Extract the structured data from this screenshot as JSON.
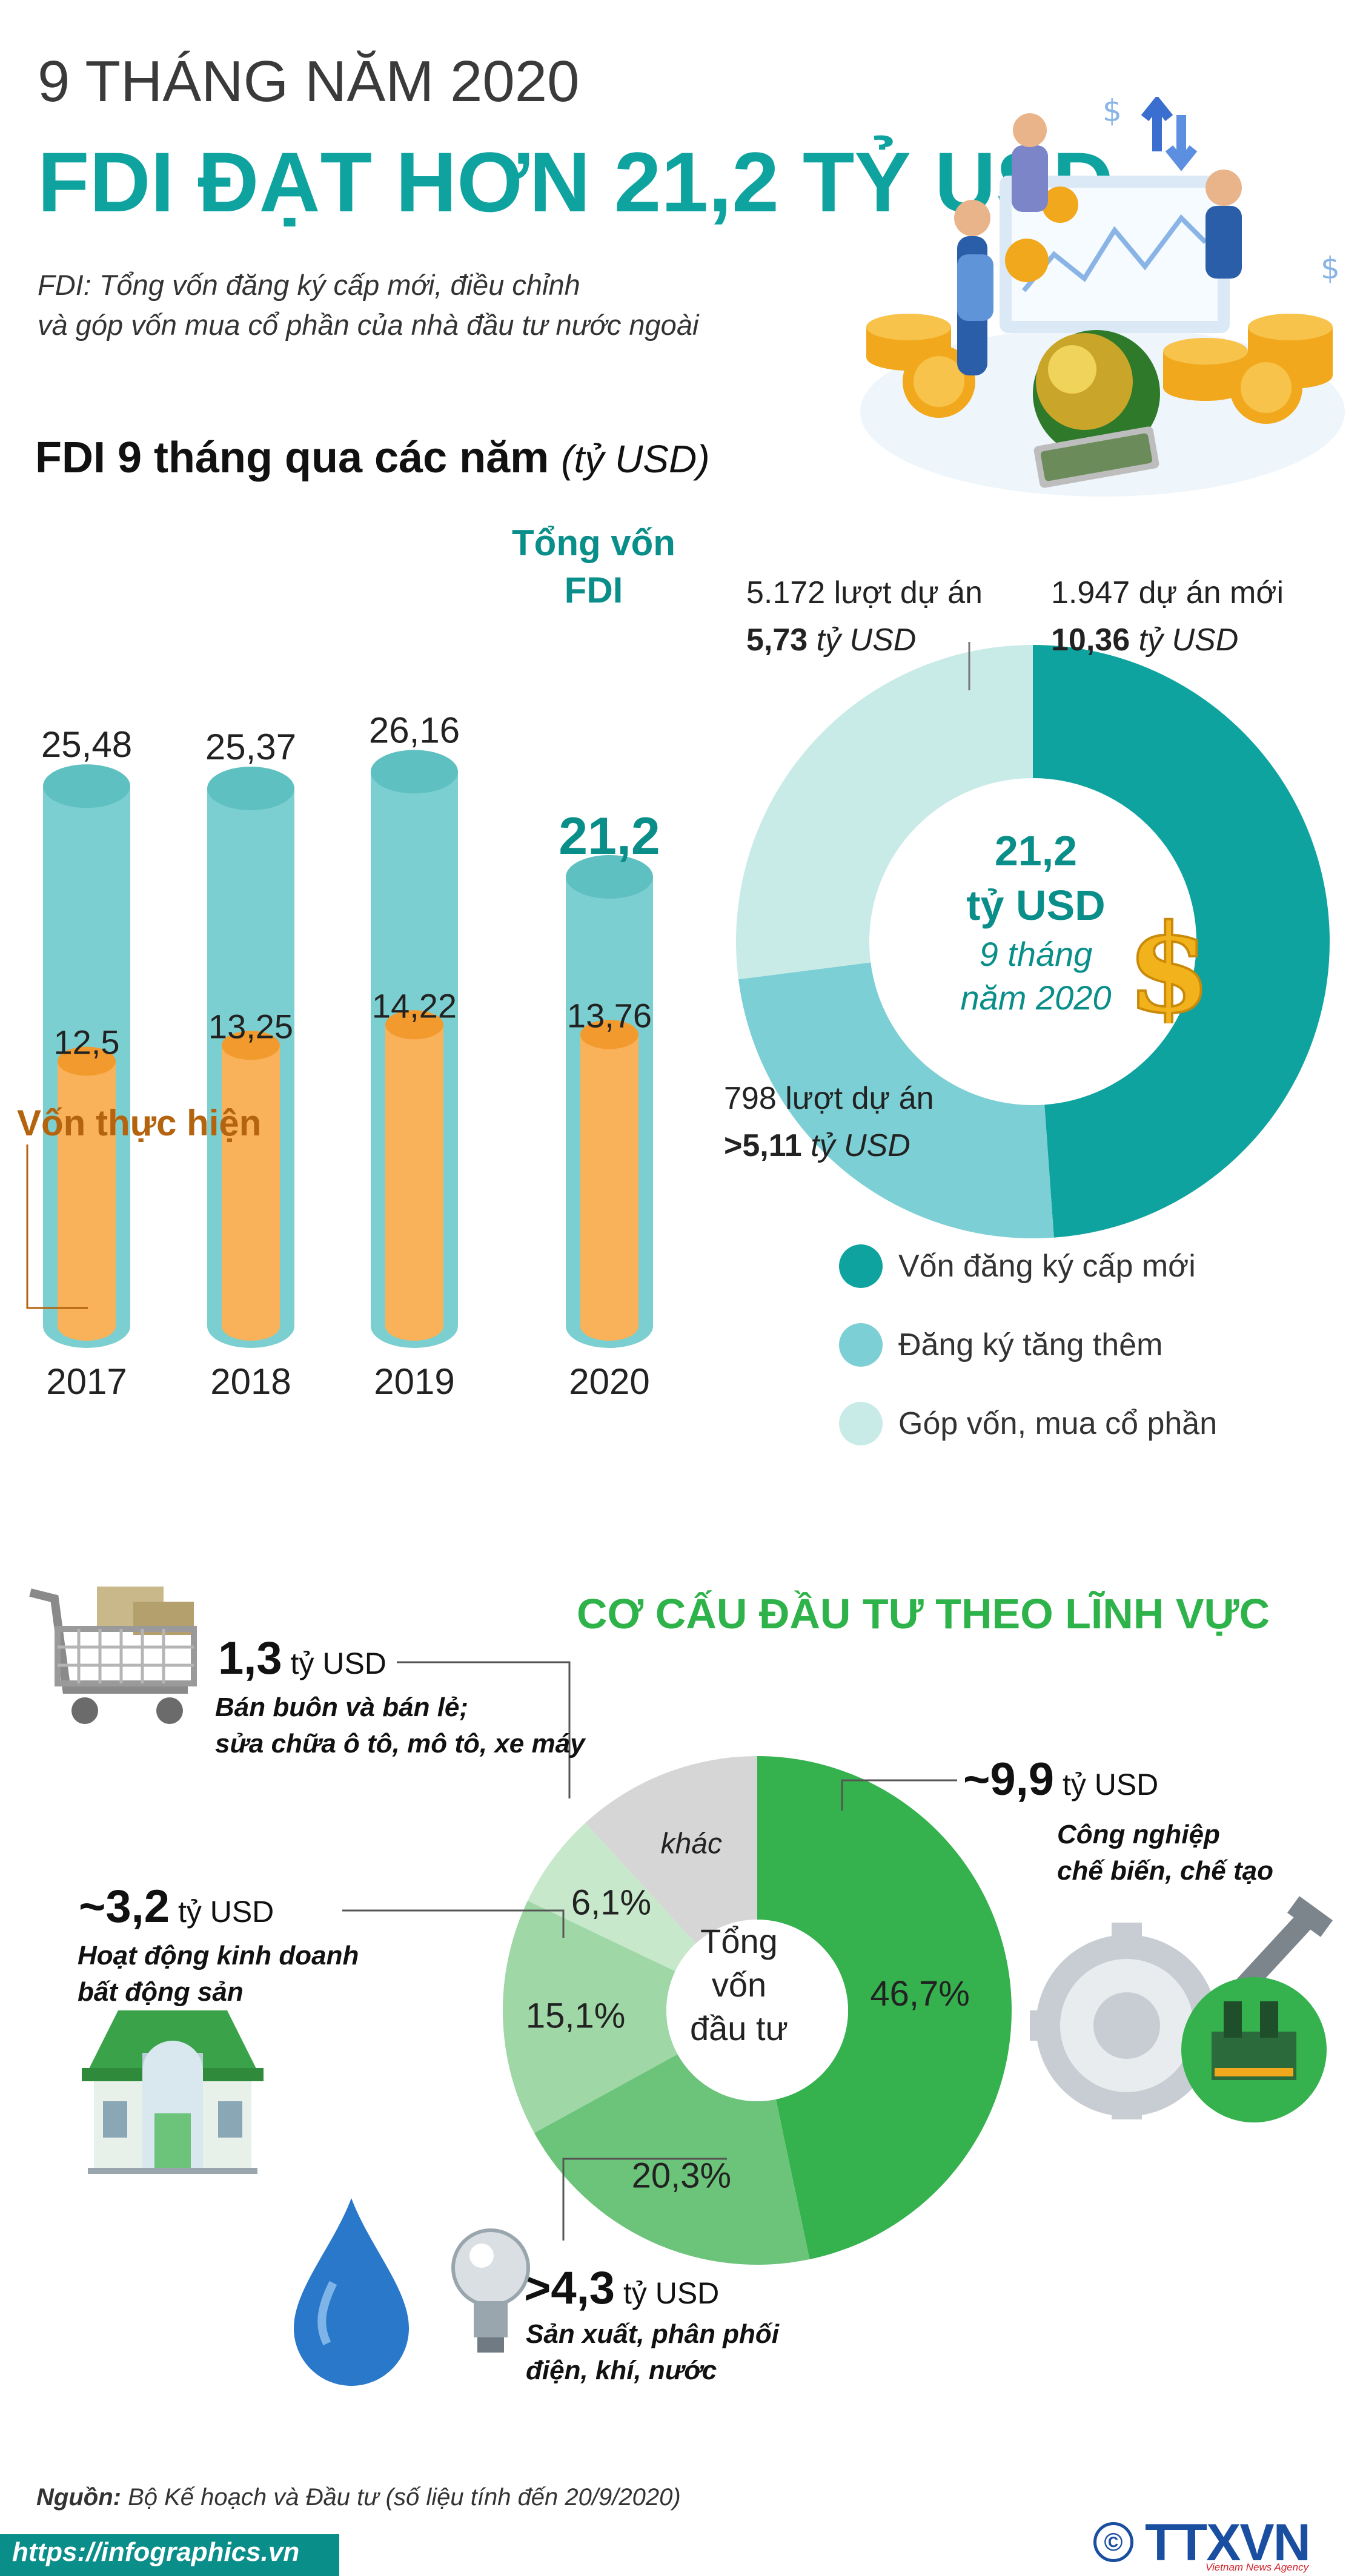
{
  "header": {
    "kicker": "9 THÁNG NĂM 2020",
    "title": "FDI ĐẠT HƠN 21,2 TỶ USD",
    "definition_line1": "FDI: Tổng vốn đăng ký cấp mới, điều chỉnh",
    "definition_line2": "và góp vốn mua cổ phần của nhà đầu tư nước ngoài"
  },
  "section1": {
    "title": "FDI 9 tháng qua các năm",
    "unit": "(tỷ USD)",
    "total_label_line1": "Tổng vốn",
    "total_label_line2": "FDI",
    "realized_label": "Vốn thực hiện",
    "colors": {
      "total": "#7ccfd0",
      "realized": "#f9b25a",
      "accent": "#0a8e8a",
      "realized_text": "#b4630e"
    }
  },
  "chart_data": [
    {
      "type": "bar",
      "categories": [
        "2017",
        "2018",
        "2019",
        "2020"
      ],
      "series": [
        {
          "name": "Tổng vốn FDI",
          "values": [
            25.48,
            25.37,
            26.16,
            21.2
          ]
        },
        {
          "name": "Vốn thực hiện",
          "values": [
            12.5,
            13.25,
            14.22,
            13.76
          ]
        }
      ],
      "labels_total": [
        "25,48",
        "25,37",
        "26,16",
        "21,2"
      ],
      "labels_realized": [
        "12,5",
        "13,25",
        "14,22",
        "13,76"
      ],
      "title": "FDI 9 tháng qua các năm",
      "ylabel": "(tỷ USD)"
    },
    {
      "type": "pie",
      "center_line1": "21,2",
      "center_line2": "tỷ USD",
      "center_line3": "9 tháng",
      "center_line4": "năm 2020",
      "slices": [
        {
          "name": "Vốn đăng ký cấp mới",
          "value": 10.36,
          "color": "#0fa3a0",
          "count_text": "1.947  dự án mới",
          "amount_text": "10,36",
          "unit_text": " tỷ USD"
        },
        {
          "name": "Đăng ký tăng thêm",
          "value": 5.11,
          "color": "#7ccfd4",
          "count_text": "798 lượt dự án",
          "amount_text": ">5,11",
          "unit_text": " tỷ USD"
        },
        {
          "name": "Góp vốn, mua cổ phần",
          "value": 5.73,
          "color": "#c9ebe8",
          "count_text": "5.172 lượt dự án",
          "amount_text": "5,73",
          "unit_text": " tỷ USD"
        }
      ]
    },
    {
      "type": "pie",
      "title": "CƠ CẤU ĐẦU TƯ THEO LĨNH VỰC",
      "center_line1": "Tổng",
      "center_line2": "vốn",
      "center_line3": "đầu tư",
      "slices": [
        {
          "name": "Công nghiệp chế biến, chế tạo",
          "percent": 46.7,
          "label": "46,7%",
          "color": "#35b14e"
        },
        {
          "name": "Sản xuất, phân phối điện, khí, nước",
          "percent": 20.3,
          "label": "20,3%",
          "color": "#6cc47a"
        },
        {
          "name": "Hoạt động kinh doanh bất động sản",
          "percent": 15.1,
          "label": "15,1%",
          "color": "#9fd7a6"
        },
        {
          "name": "Bán buôn và bán lẻ",
          "percent": 6.1,
          "label": "6,1%",
          "color": "#c7e8cb"
        },
        {
          "name": "khác",
          "percent": 11.8,
          "label": "khác",
          "color": "#d6d6d6"
        }
      ]
    }
  ],
  "section2": {
    "title": "CƠ CẤU ĐẦU TƯ THEO LĨNH VỰC",
    "manufacturing": {
      "amount": "~9,9",
      "unit": " tỷ USD",
      "desc1": "Công nghiệp",
      "desc2": "chế biến, chế tạo"
    },
    "retail": {
      "amount": "1,3",
      "unit": " tỷ USD",
      "desc1": "Bán buôn và bán lẻ;",
      "desc2": "sửa chữa ô tô, mô tô, xe máy"
    },
    "realestate": {
      "amount": "~3,2",
      "unit": " tỷ USD",
      "desc1": "Hoạt động kinh doanh",
      "desc2": "bất động sản"
    },
    "utilities": {
      "amount": ">4,3",
      "unit": " tỷ USD",
      "desc1": "Sản xuất, phân phối",
      "desc2": "điện, khí, nước"
    }
  },
  "footer": {
    "source_label": "Nguồn:",
    "source_text": " Bộ Kế hoạch và Đầu tư (số liệu tính đến 20/9/2020)",
    "url": "https://infographics.vn",
    "logo": "TTXVN",
    "logo_sub": "Vietnam News Agency",
    "copyright": "©"
  },
  "icons": [
    "business-illustration-icon",
    "dollar-sign-icon",
    "shopping-cart-icon",
    "house-icon",
    "water-drop-icon",
    "light-bulb-icon",
    "gear-wrench-icon",
    "factory-icon"
  ]
}
